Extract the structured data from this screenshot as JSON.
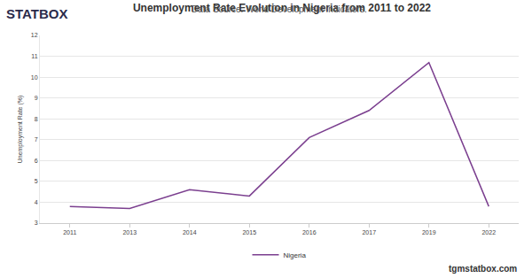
{
  "chart_data": {
    "type": "line",
    "title": "Unemployment Rate Evolution in Nigeria from 2011 to 2022",
    "subtitle": "Data Source: World Development Indicators.",
    "y_label": "Unemployment Rate (%)",
    "annotations": [
      "STATBOX",
      "tgmstatbox.com"
    ],
    "categories": [
      "2011",
      "2013",
      "2014",
      "2015",
      "2016",
      "2017",
      "2019",
      "2022"
    ],
    "series": [
      {
        "name": "Nigeria",
        "color": "#7b3f8f",
        "values": [
          3.8,
          3.7,
          4.6,
          4.3,
          7.1,
          8.4,
          10.7,
          3.8
        ]
      }
    ],
    "ylim": [
      3,
      12
    ],
    "yticks": [
      3,
      4,
      5,
      6,
      7,
      8,
      9,
      10,
      11,
      12
    ],
    "grid": true,
    "legend": "bottom"
  }
}
